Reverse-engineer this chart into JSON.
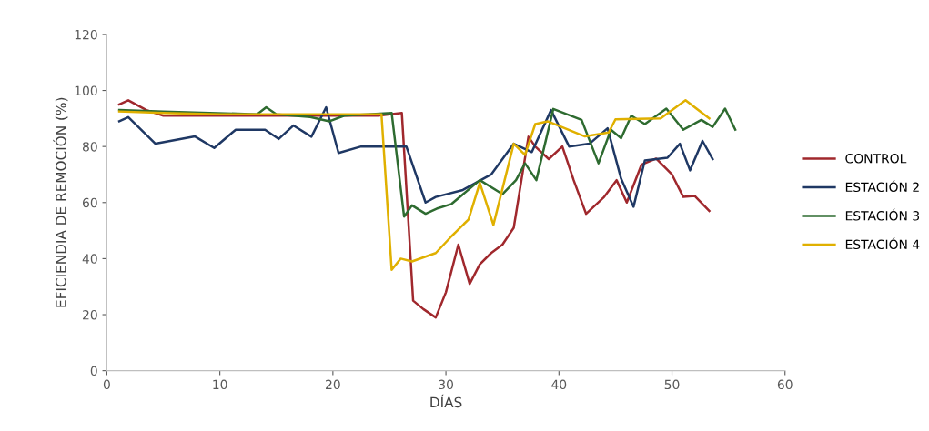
{
  "chart_data": {
    "type": "line",
    "xlabel": "DÍAS",
    "ylabel": "EFICIENDIA DE REMOCIÓN (%)",
    "xlim": [
      0,
      60
    ],
    "xticks": [
      0,
      10,
      20,
      30,
      40,
      50,
      60
    ],
    "ylim": [
      0,
      120
    ],
    "yticks": [
      0,
      20,
      40,
      60,
      80,
      100,
      120
    ],
    "grid": false,
    "legend": "right",
    "marker": "none",
    "line_style": "solid",
    "series": [
      {
        "name": "CONTROL",
        "color": "#a0282d",
        "x": [
          1.1,
          1.9,
          3.5,
          5,
          10,
          15,
          20,
          24,
          26.1,
          27.1,
          28,
          29.1,
          30,
          31.1,
          32.1,
          33,
          34,
          35,
          36,
          37.3,
          37.9,
          39.1,
          40.3,
          41.3,
          42.4,
          44,
          45.1,
          46,
          47.3,
          48.6,
          50,
          51,
          52,
          53.3
        ],
        "values": [
          95,
          96.5,
          93,
          91,
          91,
          91,
          91,
          91,
          92,
          25,
          22,
          19,
          28,
          45,
          31,
          38,
          42,
          45,
          51,
          83.5,
          80,
          75.5,
          80,
          68,
          56,
          62,
          68,
          60,
          73.5,
          75.7,
          70,
          62,
          62.4,
          57
        ]
      },
      {
        "name": "ESTACIÓN 2",
        "color": "#1f3864",
        "x": [
          1.1,
          1.9,
          4.3,
          7.8,
          9.5,
          11.4,
          14,
          15.2,
          16.5,
          18.1,
          19.4,
          20.5,
          22.5,
          25,
          26.5,
          28.2,
          29.1,
          31.5,
          34,
          36,
          37.6,
          39.3,
          40.9,
          42.7,
          44.3,
          45.5,
          46.6,
          47.6,
          49.6,
          50.7,
          51.6,
          52.7,
          53.6
        ],
        "values": [
          89,
          90.5,
          81,
          83.6,
          79.5,
          86,
          86,
          82.7,
          87.5,
          83.5,
          94,
          77.7,
          80,
          80,
          80,
          60,
          62,
          64.5,
          70,
          81,
          78,
          93,
          80,
          81,
          86.5,
          68.5,
          58.5,
          75,
          76,
          81,
          71.5,
          82,
          75.5
        ]
      },
      {
        "name": "ESTACIÓN 3",
        "color": "#2e6b30",
        "x": [
          1.1,
          5,
          13.3,
          14.1,
          15,
          18,
          19.7,
          21,
          25.2,
          26.3,
          27,
          28.2,
          29.3,
          30.5,
          33,
          35,
          36.2,
          37,
          38,
          39.5,
          42,
          43.5,
          44.6,
          45.5,
          46.4,
          47.6,
          49.5,
          51,
          52.6,
          53.6,
          54.7,
          55.6
        ],
        "values": [
          93,
          92.5,
          91.5,
          94,
          91.5,
          90.5,
          89,
          91,
          92,
          55,
          59,
          56,
          58,
          59.5,
          68,
          63,
          68,
          74,
          68,
          93.4,
          89.5,
          74,
          86,
          83,
          91,
          88,
          93.5,
          86,
          89.5,
          87,
          93.5,
          86
        ]
      },
      {
        "name": "ESTACIÓN 4",
        "color": "#e0b000",
        "x": [
          1.1,
          5,
          10,
          15,
          20,
          24.3,
          25.2,
          26,
          27,
          29.1,
          30.5,
          32,
          33,
          34.2,
          36,
          37,
          37.9,
          39,
          42.3,
          44.4,
          45,
          49,
          51.2,
          53.3
        ],
        "values": [
          92.5,
          92,
          91.5,
          91.5,
          91.5,
          91.5,
          36,
          40,
          39,
          42,
          48,
          54,
          67,
          52,
          81,
          77,
          88,
          89,
          83.6,
          85,
          89.7,
          90,
          96.5,
          90
        ]
      }
    ]
  }
}
